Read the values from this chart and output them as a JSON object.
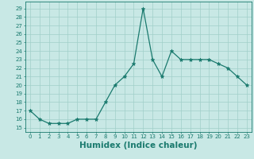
{
  "x": [
    0,
    1,
    2,
    3,
    4,
    5,
    6,
    7,
    8,
    9,
    10,
    11,
    12,
    13,
    14,
    15,
    16,
    17,
    18,
    19,
    20,
    21,
    22,
    23
  ],
  "y": [
    17,
    16,
    15.5,
    15.5,
    15.5,
    16,
    16,
    16,
    18,
    20,
    21,
    22.5,
    29,
    23,
    21,
    24,
    23,
    23,
    23,
    23,
    22.5,
    22,
    21,
    20
  ],
  "line_color": "#1a7a6e",
  "marker": "*",
  "marker_size": 3.5,
  "bg_color": "#c8e8e5",
  "grid_color": "#a0cfc9",
  "xlabel": "Humidex (Indice chaleur)",
  "xlabel_fontsize": 7.5,
  "ytick_labels": [
    "15",
    "16",
    "17",
    "18",
    "19",
    "20",
    "21",
    "22",
    "23",
    "24",
    "25",
    "26",
    "27",
    "28",
    "29"
  ],
  "ytick_vals": [
    15,
    16,
    17,
    18,
    19,
    20,
    21,
    22,
    23,
    24,
    25,
    26,
    27,
    28,
    29
  ],
  "xtick_vals": [
    0,
    1,
    2,
    3,
    4,
    5,
    6,
    7,
    8,
    9,
    10,
    11,
    12,
    13,
    14,
    15,
    16,
    17,
    18,
    19,
    20,
    21,
    22,
    23
  ],
  "ylim": [
    14.5,
    29.8
  ],
  "xlim": [
    -0.5,
    23.5
  ],
  "tick_fontsize": 5.0
}
